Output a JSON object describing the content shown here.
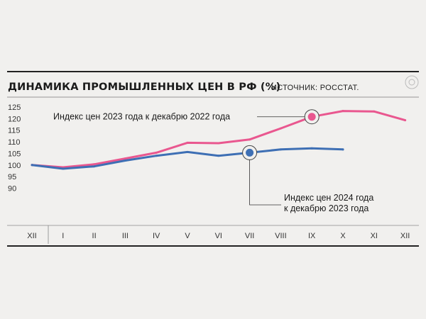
{
  "chart_data": {
    "type": "line",
    "title": "ДИНАМИКА ПРОМЫШЛЕННЫХ ЦЕН В РФ (%)",
    "source": "ИСТОЧНИК: РОССТАТ.",
    "categories": [
      "XII",
      "I",
      "II",
      "III",
      "IV",
      "V",
      "VI",
      "VII",
      "VIII",
      "IX",
      "X",
      "XI",
      "XII"
    ],
    "yticks": [
      125,
      120,
      115,
      110,
      105,
      100,
      95,
      90
    ],
    "ylim": [
      90,
      127
    ],
    "grid": false,
    "series": [
      {
        "name": "Индекс цен 2023 года к декабрю 2022 года",
        "color": "#e9578f",
        "highlight_category": "IX",
        "values": [
          100,
          99,
          100.3,
          102.8,
          105.3,
          109.6,
          109.4,
          111,
          115.8,
          120.8,
          123.3,
          123.1,
          119.3
        ]
      },
      {
        "name": "Индекс цен 2024 года к декабрю 2023 года",
        "color": "#3e6fb4",
        "highlight_category": "VII",
        "values": [
          100,
          98.4,
          99.4,
          101.9,
          104,
          105.6,
          104,
          105.3,
          106.7,
          107.2,
          106.7,
          null,
          null
        ]
      }
    ],
    "annotations": [
      {
        "series": 0,
        "lines": [
          "Индекс цен 2023 года к декабрю 2022 года"
        ]
      },
      {
        "series": 1,
        "lines": [
          "Индекс цен 2024 года",
          "к декабрю 2023 года"
        ]
      }
    ]
  }
}
